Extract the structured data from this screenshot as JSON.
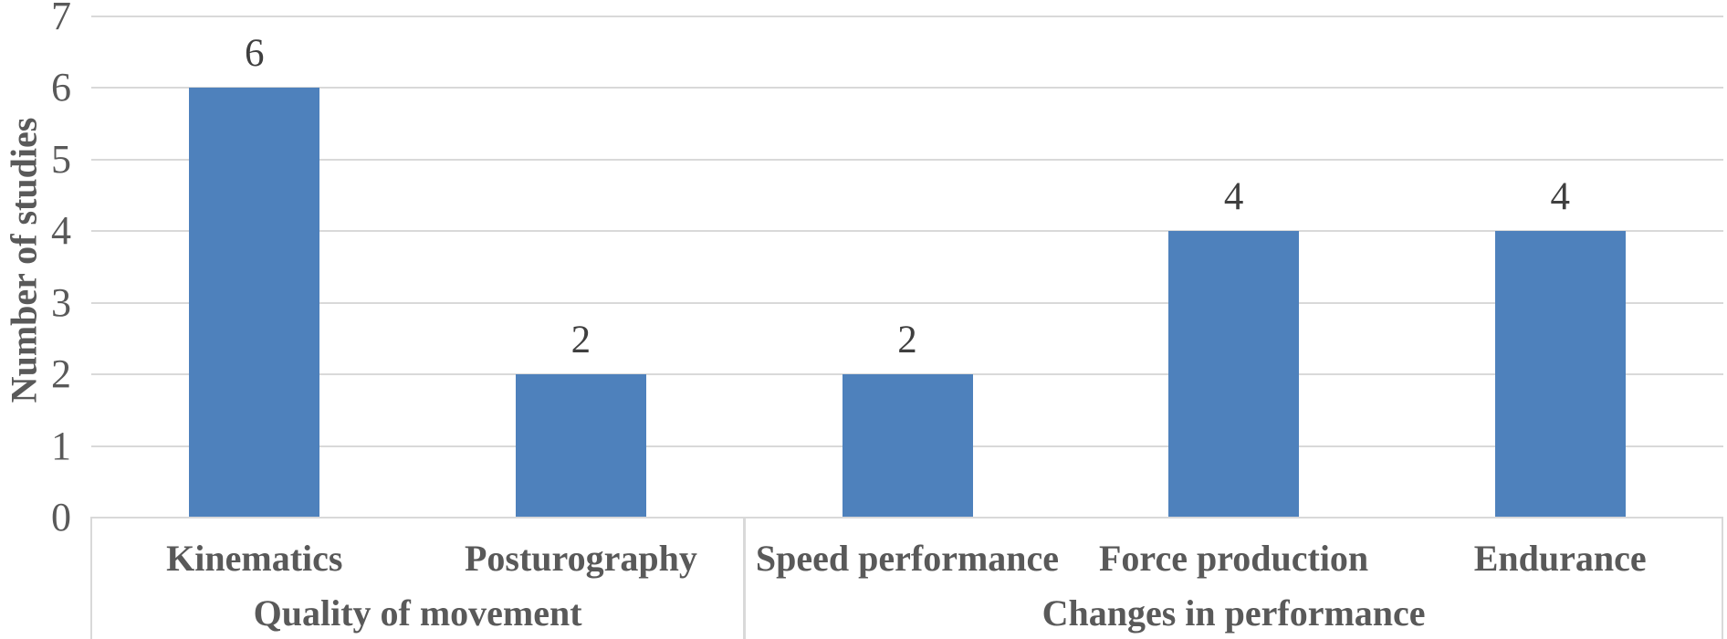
{
  "chart_data": {
    "type": "bar",
    "title": "",
    "xlabel": "",
    "ylabel": "Number of studies",
    "categories": [
      "Kinematics",
      "Posturography",
      "Speed performance",
      "Force production",
      "Endurance"
    ],
    "values": [
      6,
      2,
      2,
      4,
      4
    ],
    "value_labels": [
      "6",
      "2",
      "2",
      "4",
      "4"
    ],
    "groups": [
      {
        "label": "Quality of movement",
        "span": 2
      },
      {
        "label": "Changes in performance",
        "span": 3
      }
    ],
    "y_ticks": [
      0,
      1,
      2,
      3,
      4,
      5,
      6,
      7
    ],
    "ylim": [
      0,
      7
    ],
    "grid": "horizontal gridlines at every integer",
    "legend": "none",
    "colors": {
      "bar_fill": "#4E81BC",
      "gridline": "#D9D9D9",
      "axis_box_border": "#D9D9D9",
      "group_divider": "#D9D9D9",
      "tick_text": "#595959",
      "category_text": "#595959",
      "group_text": "#595959",
      "axis_title_text": "#595959",
      "value_label_text": "#3F3F3F",
      "background": "#ffffff"
    }
  }
}
